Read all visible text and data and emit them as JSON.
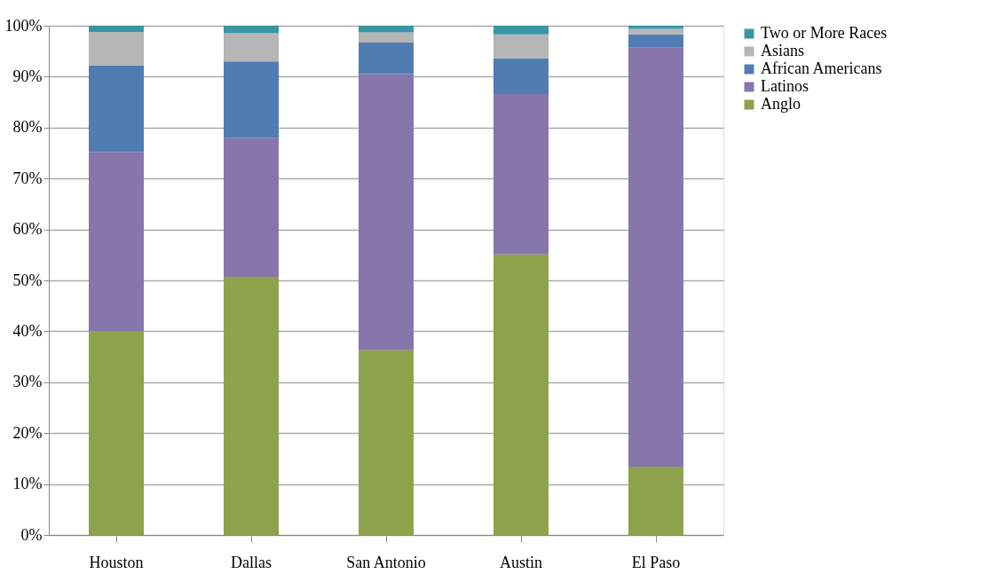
{
  "chart_data": {
    "type": "bar",
    "stacked": true,
    "categories": [
      "Houston",
      "Dallas",
      "San Antonio",
      "Austin",
      "El Paso"
    ],
    "series": [
      {
        "name": "Anglo",
        "color": "#8da24a",
        "values": [
          40.0,
          50.7,
          36.3,
          55.1,
          13.4
        ]
      },
      {
        "name": "Latinos",
        "color": "#8676ab",
        "values": [
          35.2,
          27.3,
          54.2,
          31.5,
          82.3
        ]
      },
      {
        "name": "African Americans",
        "color": "#4f7db3",
        "values": [
          17.0,
          15.0,
          6.2,
          7.0,
          2.6
        ]
      },
      {
        "name": "Asians",
        "color": "#b5b5b5",
        "values": [
          6.6,
          5.5,
          2.0,
          4.7,
          1.1
        ]
      },
      {
        "name": "Two or More Races",
        "color": "#3a95a7",
        "values": [
          1.2,
          1.5,
          1.3,
          1.7,
          0.6
        ]
      }
    ],
    "ylim": [
      0,
      100
    ],
    "yticks": [
      {
        "value": 0,
        "label": "0%"
      },
      {
        "value": 10,
        "label": "10%"
      },
      {
        "value": 20,
        "label": "20%"
      },
      {
        "value": 30,
        "label": "30%"
      },
      {
        "value": 40,
        "label": "40%"
      },
      {
        "value": 50,
        "label": "50%"
      },
      {
        "value": 60,
        "label": "60%"
      },
      {
        "value": 70,
        "label": "70%"
      },
      {
        "value": 80,
        "label": "80%"
      },
      {
        "value": 90,
        "label": "90%"
      },
      {
        "value": 100,
        "label": "100%"
      }
    ],
    "grid": "y",
    "legend": "right"
  }
}
